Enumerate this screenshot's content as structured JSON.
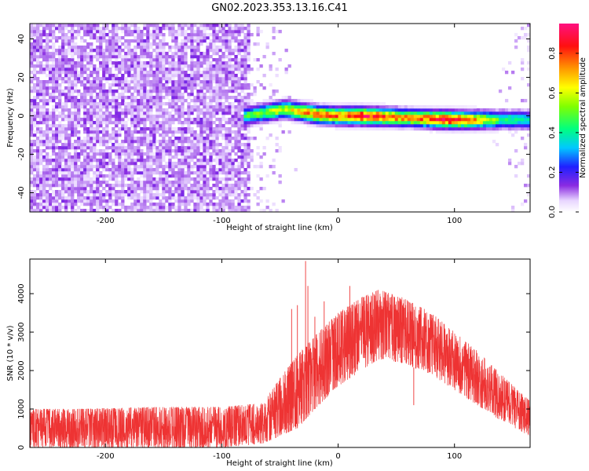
{
  "title": "GN02.2023.353.13.16.C41",
  "chart_data": [
    {
      "type": "heatmap",
      "xlabel": "Height of straight line (km)",
      "ylabel": "Frequency (Hz)",
      "xlim": [
        -265,
        165
      ],
      "ylim": [
        -50,
        48
      ],
      "xticks": [
        -200,
        -100,
        0,
        100
      ],
      "yticks": [
        -40,
        -20,
        0,
        20,
        40
      ],
      "colorbar": {
        "label": "Normalized spectral amplitude",
        "range": [
          0,
          0.95
        ],
        "ticks": [
          0.0,
          0.2,
          0.4,
          0.6,
          0.8
        ],
        "tick_labels": [
          "0.0",
          "0.2",
          "0.4",
          "0.6",
          "0.8"
        ]
      },
      "ridge": [
        {
          "x": -80,
          "f": 0.0,
          "amp": 0.45
        },
        {
          "x": -60,
          "f": 2.0,
          "amp": 0.55
        },
        {
          "x": -45,
          "f": 3.5,
          "amp": 0.6
        },
        {
          "x": -30,
          "f": 2.0,
          "amp": 0.7
        },
        {
          "x": -15,
          "f": 0.5,
          "amp": 0.8
        },
        {
          "x": 0,
          "f": 0.0,
          "amp": 0.75
        },
        {
          "x": 20,
          "f": 0.0,
          "amp": 0.9
        },
        {
          "x": 40,
          "f": -0.5,
          "amp": 0.8
        },
        {
          "x": 60,
          "f": -1.0,
          "amp": 0.7
        },
        {
          "x": 80,
          "f": -1.5,
          "amp": 0.8
        },
        {
          "x": 100,
          "f": -2.0,
          "amp": 0.9
        },
        {
          "x": 120,
          "f": -2.0,
          "amp": 0.7
        },
        {
          "x": 140,
          "f": -2.0,
          "amp": 0.45
        },
        {
          "x": 165,
          "f": -2.0,
          "amp": 0.4
        }
      ],
      "noise_region_x": [
        -265,
        -75
      ]
    },
    {
      "type": "line",
      "color": "#ee3333",
      "xlabel": "Height of straight line (km)",
      "ylabel": "SNR (10 * v/v)",
      "xlim": [
        -265,
        165
      ],
      "ylim": [
        0,
        4900
      ],
      "xticks": [
        -200,
        -100,
        0,
        100
      ],
      "yticks": [
        0,
        1000,
        2000,
        3000,
        4000
      ],
      "envelope": [
        {
          "x": -265,
          "low": 0,
          "high": 1000
        },
        {
          "x": -220,
          "low": 0,
          "high": 1000
        },
        {
          "x": -160,
          "low": 0,
          "high": 1050
        },
        {
          "x": -100,
          "low": 0,
          "high": 1050
        },
        {
          "x": -65,
          "low": 100,
          "high": 1150
        },
        {
          "x": -50,
          "low": 300,
          "high": 1800
        },
        {
          "x": -35,
          "low": 500,
          "high": 2400
        },
        {
          "x": -20,
          "low": 1000,
          "high": 2900
        },
        {
          "x": 0,
          "low": 1600,
          "high": 3500
        },
        {
          "x": 20,
          "low": 2000,
          "high": 3900
        },
        {
          "x": 35,
          "low": 2300,
          "high": 4100
        },
        {
          "x": 55,
          "low": 2200,
          "high": 3900
        },
        {
          "x": 80,
          "low": 1900,
          "high": 3500
        },
        {
          "x": 100,
          "low": 1500,
          "high": 3000
        },
        {
          "x": 120,
          "low": 1100,
          "high": 2500
        },
        {
          "x": 140,
          "low": 700,
          "high": 1900
        },
        {
          "x": 165,
          "low": 300,
          "high": 1200
        }
      ],
      "spikes": [
        {
          "x": -28,
          "y": 4850
        },
        {
          "x": -26,
          "y": 4200
        },
        {
          "x": -35,
          "y": 3700
        },
        {
          "x": -40,
          "y": 3600
        },
        {
          "x": -20,
          "y": 3400
        },
        {
          "x": -12,
          "y": 3800
        },
        {
          "x": 10,
          "y": 4200
        },
        {
          "x": 65,
          "y": 1100
        }
      ]
    }
  ]
}
